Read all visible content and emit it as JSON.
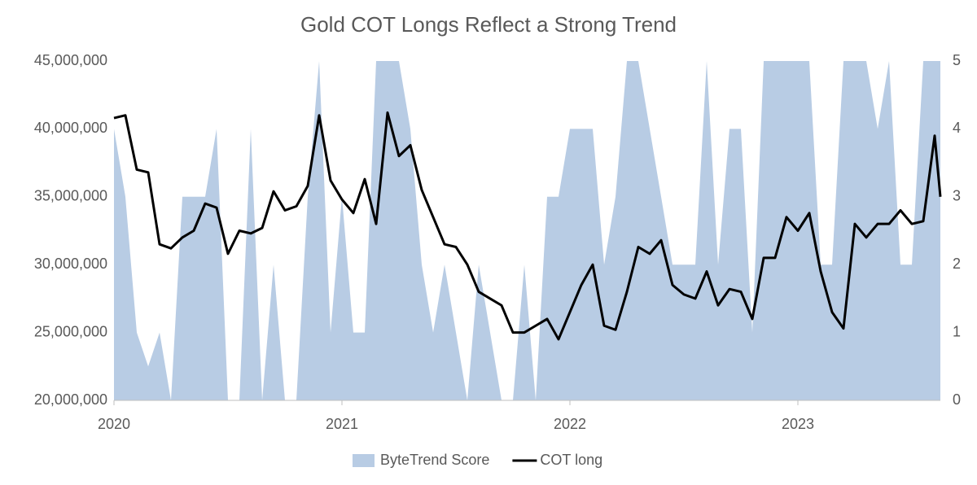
{
  "chart_data": {
    "type": "line-area",
    "title": "Gold COT Longs Reflect a Strong Trend",
    "x": [
      2020,
      2020.05,
      2020.1,
      2020.15,
      2020.2,
      2020.25,
      2020.3,
      2020.35,
      2020.4,
      2020.45,
      2020.5,
      2020.55,
      2020.6,
      2020.65,
      2020.7,
      2020.75,
      2020.8,
      2020.85,
      2020.9,
      2020.95,
      2021,
      2021.05,
      2021.1,
      2021.15,
      2021.2,
      2021.25,
      2021.3,
      2021.35,
      2021.4,
      2021.45,
      2021.5,
      2021.55,
      2021.6,
      2021.65,
      2021.7,
      2021.75,
      2021.8,
      2021.85,
      2021.9,
      2021.95,
      2022,
      2022.05,
      2022.1,
      2022.15,
      2022.2,
      2022.25,
      2022.3,
      2022.35,
      2022.4,
      2022.45,
      2022.5,
      2022.55,
      2022.6,
      2022.65,
      2022.7,
      2022.75,
      2022.8,
      2022.85,
      2022.9,
      2022.95,
      2023,
      2023.05,
      2023.1,
      2023.15,
      2023.2,
      2023.25,
      2023.3,
      2023.35,
      2023.4,
      2023.45,
      2023.5,
      2023.55,
      2023.6,
      2023.625
    ],
    "series": [
      {
        "name": "ByteTrend Score",
        "color": "#b8cce4",
        "axis": "y2",
        "kind": "area",
        "values": [
          4,
          3,
          1,
          0.5,
          1,
          0,
          3,
          3,
          3,
          4,
          0,
          0,
          4,
          0,
          2,
          0,
          0,
          3,
          5,
          1,
          3,
          1,
          1,
          5,
          5,
          5,
          4,
          2,
          1,
          2,
          1,
          0,
          2,
          1,
          0,
          0,
          2,
          0,
          3,
          3,
          4,
          4,
          4,
          2,
          3,
          5,
          5,
          4,
          3,
          2,
          2,
          2,
          5,
          2,
          4,
          4,
          1,
          5,
          5,
          5,
          5,
          5,
          2,
          2,
          5,
          5,
          5,
          4,
          5,
          2,
          2,
          5,
          5,
          5
        ]
      },
      {
        "name": "COT long",
        "color": "#000000",
        "kind": "line",
        "values": [
          40800000,
          41000000,
          37000000,
          36800000,
          31500000,
          31200000,
          32000000,
          32500000,
          34500000,
          34200000,
          30800000,
          32500000,
          32300000,
          32700000,
          35400000,
          34000000,
          34300000,
          35800000,
          41000000,
          36200000,
          34800000,
          33800000,
          36300000,
          33000000,
          41200000,
          38000000,
          38800000,
          35500000,
          33500000,
          31500000,
          31300000,
          30000000,
          28000000,
          27500000,
          27000000,
          25000000,
          25000000,
          25500000,
          26000000,
          24500000,
          26500000,
          28500000,
          30000000,
          25500000,
          25200000,
          28000000,
          31300000,
          30800000,
          31800000,
          28500000,
          27800000,
          27500000,
          29500000,
          27000000,
          28200000,
          28000000,
          26000000,
          30500000,
          30500000,
          33500000,
          32500000,
          33800000,
          29500000,
          26500000,
          25300000,
          33000000,
          32000000,
          33000000,
          33000000,
          34000000,
          33000000,
          33200000,
          39500000,
          35000000
        ]
      }
    ],
    "xlim": [
      2020,
      2023.625
    ],
    "xticks": [
      2020,
      2021,
      2022,
      2023
    ],
    "ylim": [
      20000000,
      45000000
    ],
    "yticks": [
      {
        "value": 20000000,
        "label": "20,000,000"
      },
      {
        "value": 25000000,
        "label": "25,000,000"
      },
      {
        "value": 30000000,
        "label": "30,000,000"
      },
      {
        "value": 35000000,
        "label": "35,000,000"
      },
      {
        "value": 40000000,
        "label": "40,000,000"
      },
      {
        "value": 45000000,
        "label": "45,000,000"
      }
    ],
    "y2lim": [
      0,
      5
    ],
    "y2ticks": [
      0,
      1,
      2,
      3,
      4,
      5
    ],
    "legend": "bottom"
  }
}
